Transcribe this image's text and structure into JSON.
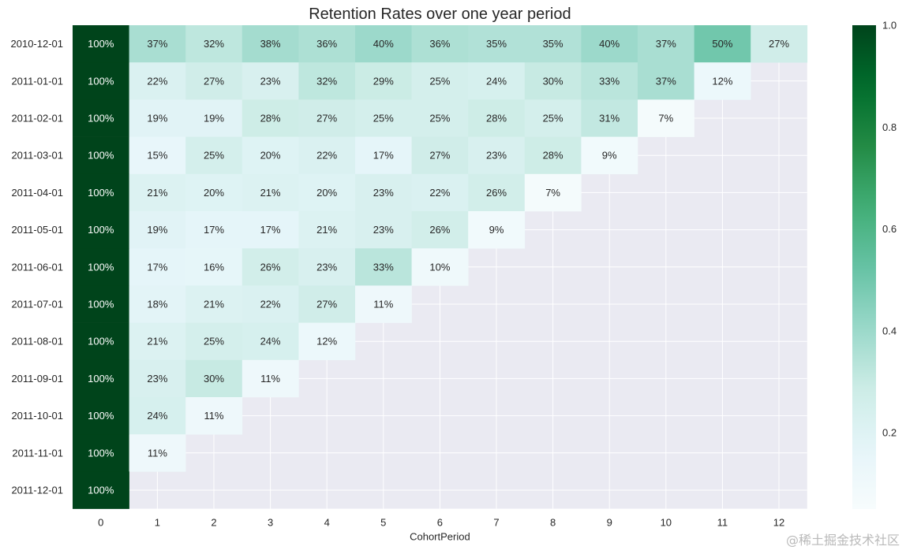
{
  "chart_data": {
    "type": "heatmap",
    "title": "Retention Rates over one year period",
    "xlabel": "CohortPeriod",
    "ylabel": "",
    "x": [
      "0",
      "1",
      "2",
      "3",
      "4",
      "5",
      "6",
      "7",
      "8",
      "9",
      "10",
      "11",
      "12"
    ],
    "y": [
      "2010-12-01",
      "2011-01-01",
      "2011-02-01",
      "2011-03-01",
      "2011-04-01",
      "2011-05-01",
      "2011-06-01",
      "2011-07-01",
      "2011-08-01",
      "2011-09-01",
      "2011-10-01",
      "2011-11-01",
      "2011-12-01"
    ],
    "values": [
      [
        1.0,
        0.37,
        0.32,
        0.38,
        0.36,
        0.4,
        0.36,
        0.35,
        0.35,
        0.4,
        0.37,
        0.5,
        0.27
      ],
      [
        1.0,
        0.22,
        0.27,
        0.23,
        0.32,
        0.29,
        0.25,
        0.24,
        0.3,
        0.33,
        0.37,
        0.12,
        null
      ],
      [
        1.0,
        0.19,
        0.19,
        0.28,
        0.27,
        0.25,
        0.25,
        0.28,
        0.25,
        0.31,
        0.07,
        null,
        null
      ],
      [
        1.0,
        0.15,
        0.25,
        0.2,
        0.22,
        0.17,
        0.27,
        0.23,
        0.28,
        0.09,
        null,
        null,
        null
      ],
      [
        1.0,
        0.21,
        0.2,
        0.21,
        0.2,
        0.23,
        0.22,
        0.26,
        0.07,
        null,
        null,
        null,
        null
      ],
      [
        1.0,
        0.19,
        0.17,
        0.17,
        0.21,
        0.23,
        0.26,
        0.09,
        null,
        null,
        null,
        null,
        null
      ],
      [
        1.0,
        0.17,
        0.16,
        0.26,
        0.23,
        0.33,
        0.1,
        null,
        null,
        null,
        null,
        null,
        null
      ],
      [
        1.0,
        0.18,
        0.21,
        0.22,
        0.27,
        0.11,
        null,
        null,
        null,
        null,
        null,
        null,
        null
      ],
      [
        1.0,
        0.21,
        0.25,
        0.24,
        0.12,
        null,
        null,
        null,
        null,
        null,
        null,
        null,
        null
      ],
      [
        1.0,
        0.23,
        0.3,
        0.11,
        null,
        null,
        null,
        null,
        null,
        null,
        null,
        null,
        null
      ],
      [
        1.0,
        0.24,
        0.11,
        null,
        null,
        null,
        null,
        null,
        null,
        null,
        null,
        null,
        null
      ],
      [
        1.0,
        0.11,
        null,
        null,
        null,
        null,
        null,
        null,
        null,
        null,
        null,
        null,
        null
      ],
      [
        1.0,
        null,
        null,
        null,
        null,
        null,
        null,
        null,
        null,
        null,
        null,
        null,
        null
      ]
    ],
    "value_format": "percent",
    "colorbar": {
      "min": 0.05,
      "max": 1.0,
      "ticks": [
        0.2,
        0.4,
        0.6,
        0.8,
        1.0
      ],
      "tick_labels": [
        "0.2",
        "0.4",
        "0.6",
        "0.8",
        "1.0"
      ],
      "colormap": "BuGn"
    },
    "background_color": "#eaeaf2",
    "grid": true
  },
  "watermark": "@稀土掘金技术社区"
}
